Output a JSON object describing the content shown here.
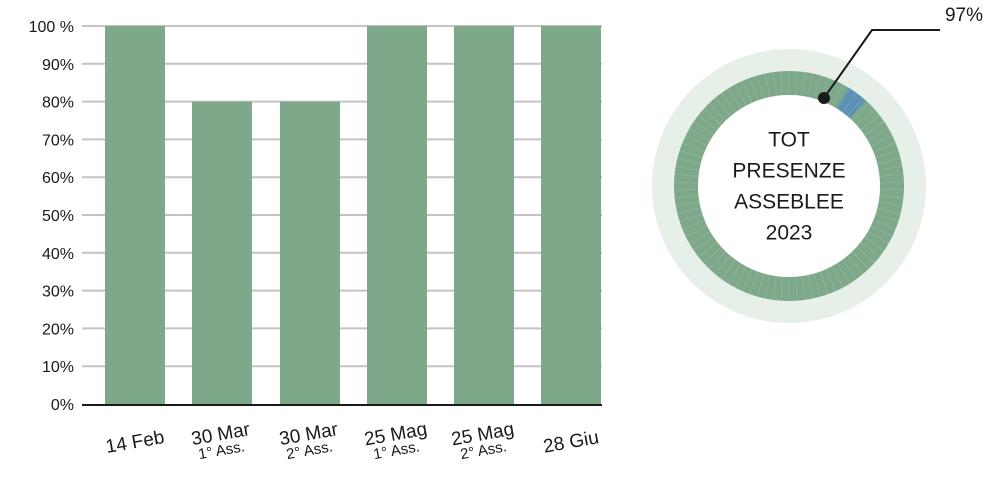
{
  "chart_data": [
    {
      "type": "bar",
      "categories": [
        "14 Feb",
        "30 Mar 1° Ass.",
        "30 Mar 2° Ass.",
        "25 Mag 1° Ass.",
        "25 Mag 2° Ass.",
        "28 Giu"
      ],
      "category_lines": [
        [
          "14 Feb"
        ],
        [
          "30 Mar",
          "1° Ass."
        ],
        [
          "30 Mar",
          "2° Ass."
        ],
        [
          "25 Mag",
          "1° Ass."
        ],
        [
          "25 Mag",
          "2° Ass."
        ],
        [
          "28 Giu"
        ]
      ],
      "values": [
        100,
        80,
        80,
        100,
        100,
        100
      ],
      "ylim": [
        0,
        100
      ],
      "yticks": [
        0,
        10,
        20,
        30,
        40,
        50,
        60,
        70,
        80,
        90,
        100
      ],
      "ytick_labels": [
        "0%",
        "10%",
        "20%",
        "30%",
        "40%",
        "50%",
        "60%",
        "70%",
        "80%",
        "90%",
        "100 %"
      ],
      "grid": true,
      "color": "#7ea88a"
    },
    {
      "type": "pie",
      "center_label": [
        "TOT",
        "PRESENZE",
        "ASSEBLEE",
        "2023"
      ],
      "values": [
        97,
        3
      ],
      "annotation": "97%",
      "colors": [
        "#7ea88a",
        "#5b92b4"
      ]
    }
  ]
}
